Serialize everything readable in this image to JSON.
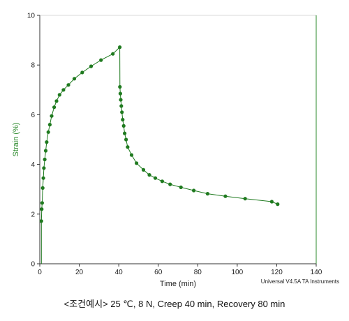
{
  "chart_data": {
    "type": "scatter",
    "xlabel": "Time (min)",
    "ylabel": "Strain (%)",
    "xlim": [
      0,
      140
    ],
    "ylim": [
      0,
      10
    ],
    "x_ticks": [
      "0",
      "20",
      "40",
      "60",
      "80",
      "100",
      "120",
      "140"
    ],
    "y_ticks": [
      "0",
      "2",
      "4",
      "6",
      "8",
      "10"
    ],
    "grid": false,
    "colors": {
      "series": "#1f7a1f",
      "right_axis": "#2e8b2e",
      "ylabel": "#2e8b2e"
    },
    "series": [
      {
        "x": [
          0.8,
          1.0,
          1.2,
          1.5,
          1.8,
          2.1,
          2.5,
          3.0,
          3.5,
          4.3,
          5.1,
          6.0,
          7.3,
          8.5,
          10.0,
          12.0,
          14.5,
          17.5,
          21.5,
          26.0,
          31.0,
          37.0,
          40.5,
          40.6,
          40.8,
          41.0,
          41.3,
          41.6,
          42.0,
          42.5,
          43.0,
          43.7,
          44.5,
          46.5,
          49.0,
          52.5,
          55.5,
          58.5,
          62.0,
          66.0,
          71.5,
          78.0,
          85.0,
          94.0,
          104.0,
          117.5,
          120.5
        ],
        "y": [
          1.72,
          2.2,
          2.45,
          3.05,
          3.45,
          3.85,
          4.2,
          4.55,
          4.9,
          5.3,
          5.6,
          5.95,
          6.3,
          6.55,
          6.8,
          7.0,
          7.2,
          7.45,
          7.7,
          7.95,
          8.2,
          8.45,
          8.72,
          7.12,
          6.85,
          6.6,
          6.35,
          6.1,
          5.8,
          5.55,
          5.25,
          5.0,
          4.7,
          4.38,
          4.05,
          3.78,
          3.58,
          3.45,
          3.32,
          3.2,
          3.08,
          2.95,
          2.82,
          2.72,
          2.62,
          2.5,
          2.4
        ]
      }
    ],
    "annotation": "Universal V4.5A TA Instruments"
  },
  "caption": "<조건예시> 25 ℃, 8 N, Creep 40 min, Recovery 80 min"
}
